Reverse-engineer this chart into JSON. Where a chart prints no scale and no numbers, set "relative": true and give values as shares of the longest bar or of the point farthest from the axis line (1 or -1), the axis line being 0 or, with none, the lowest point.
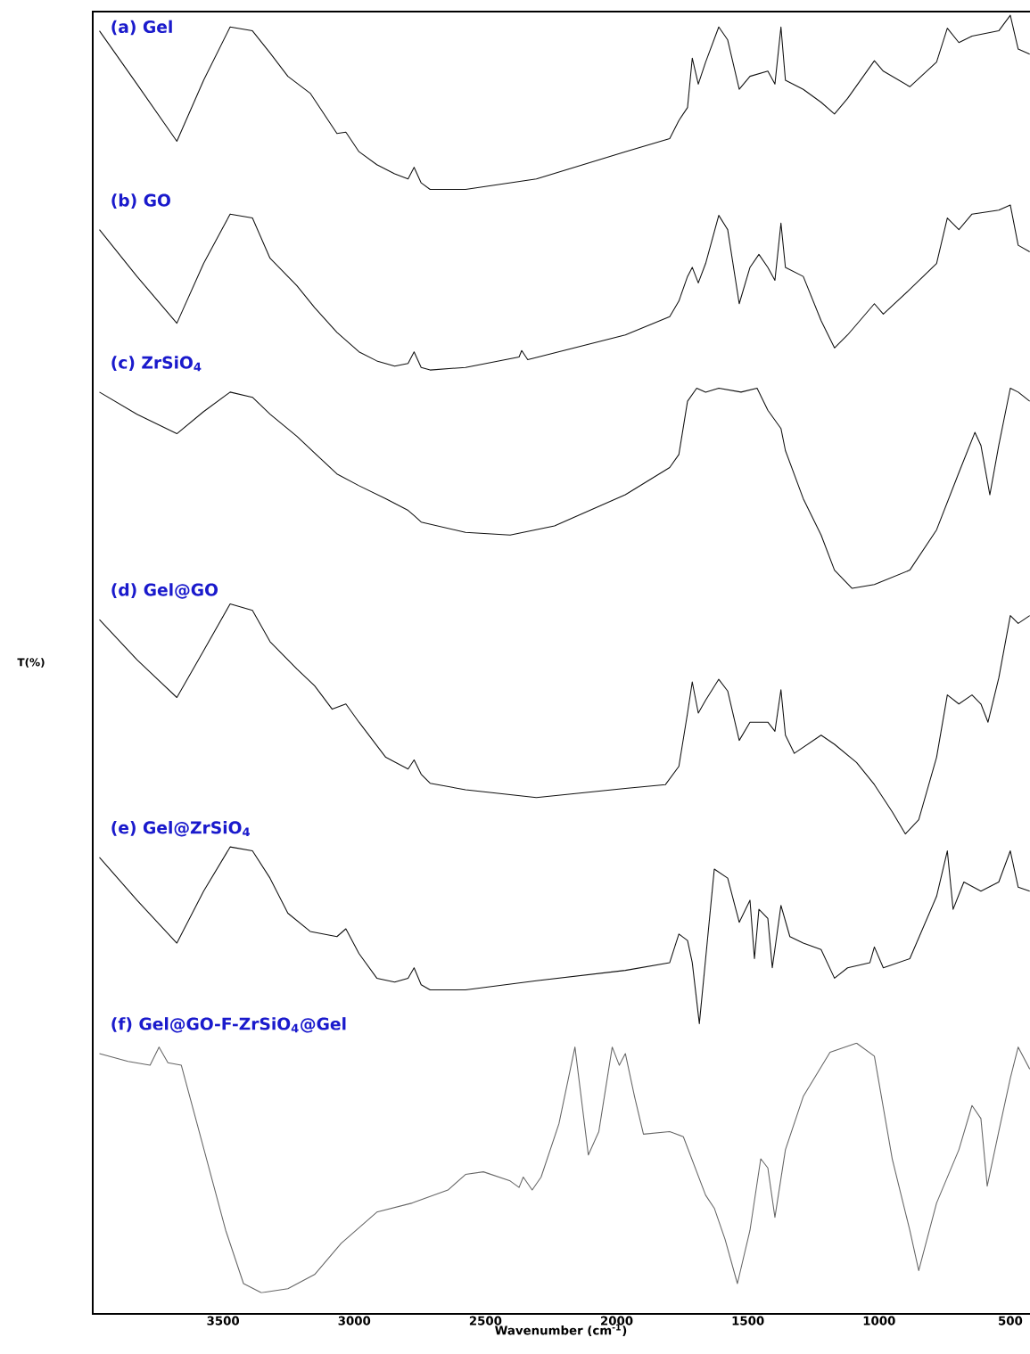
{
  "chart_data": {
    "type": "line",
    "relative": true,
    "xlabel": "Wavenumber (cm$^{-1}$)",
    "ylabel": "T(%)",
    "xlim": [
      4000,
      425
    ],
    "xticks": [
      3500,
      3000,
      2500,
      2000,
      1500,
      1000,
      500
    ],
    "series": [
      {
        "name": "(a) Gel",
        "color": "#111111",
        "x": [
          3971,
          3828,
          3676,
          3574,
          3473,
          3388,
          3321,
          3253,
          3168,
          3066,
          3032,
          2982,
          2914,
          2846,
          2795,
          2772,
          2745,
          2711,
          2576,
          2306,
          1967,
          1798,
          1763,
          1730,
          1712,
          1689,
          1661,
          1611,
          1577,
          1533,
          1492,
          1424,
          1397,
          1374,
          1357,
          1289,
          1221,
          1170,
          1120,
          1018,
          984,
          883,
          781,
          740,
          696,
          646,
          544,
          500,
          470,
          426
        ],
        "values": [
          0.988,
          0.947,
          0.903,
          0.95,
          0.991,
          0.988,
          0.971,
          0.953,
          0.94,
          0.909,
          0.91,
          0.895,
          0.885,
          0.878,
          0.874,
          0.883,
          0.871,
          0.866,
          0.866,
          0.874,
          0.895,
          0.905,
          0.919,
          0.929,
          0.967,
          0.947,
          0.964,
          0.991,
          0.981,
          0.943,
          0.953,
          0.957,
          0.947,
          0.991,
          0.95,
          0.943,
          0.933,
          0.924,
          0.936,
          0.965,
          0.957,
          0.945,
          0.964,
          0.99,
          0.979,
          0.984,
          0.988,
          1.0,
          0.974,
          0.97
        ]
      },
      {
        "name": "(b) GO",
        "color": "#111111",
        "x": [
          3971,
          3828,
          3676,
          3574,
          3473,
          3388,
          3321,
          3219,
          3151,
          3066,
          2982,
          2914,
          2846,
          2795,
          2772,
          2745,
          2711,
          2576,
          2372,
          2362,
          2339,
          1967,
          1798,
          1763,
          1730,
          1712,
          1689,
          1661,
          1611,
          1577,
          1533,
          1492,
          1458,
          1424,
          1397,
          1374,
          1357,
          1289,
          1221,
          1170,
          1120,
          1018,
          984,
          883,
          781,
          740,
          696,
          646,
          544,
          500,
          470,
          426
        ],
        "values": [
          0.835,
          0.799,
          0.763,
          0.809,
          0.847,
          0.844,
          0.813,
          0.792,
          0.775,
          0.756,
          0.741,
          0.734,
          0.73,
          0.732,
          0.741,
          0.729,
          0.727,
          0.729,
          0.737,
          0.742,
          0.735,
          0.754,
          0.768,
          0.78,
          0.799,
          0.806,
          0.794,
          0.809,
          0.846,
          0.835,
          0.778,
          0.806,
          0.816,
          0.806,
          0.796,
          0.84,
          0.806,
          0.799,
          0.765,
          0.744,
          0.754,
          0.778,
          0.77,
          0.789,
          0.809,
          0.844,
          0.835,
          0.847,
          0.85,
          0.854,
          0.823,
          0.818
        ]
      },
      {
        "name": "(c) ZrSiO$_{4}$",
        "color": "#111111",
        "x": [
          3971,
          3828,
          3676,
          3574,
          3473,
          3388,
          3321,
          3219,
          3066,
          2982,
          2880,
          2795,
          2772,
          2745,
          2576,
          2406,
          2237,
          1967,
          1798,
          1763,
          1730,
          1695,
          1661,
          1611,
          1526,
          1465,
          1424,
          1374,
          1357,
          1289,
          1221,
          1170,
          1103,
          1018,
          883,
          781,
          696,
          635,
          612,
          578,
          544,
          500,
          470,
          426
        ],
        "values": [
          0.71,
          0.693,
          0.678,
          0.695,
          0.71,
          0.706,
          0.693,
          0.676,
          0.647,
          0.638,
          0.628,
          0.619,
          0.615,
          0.61,
          0.602,
          0.6,
          0.607,
          0.631,
          0.652,
          0.662,
          0.703,
          0.713,
          0.71,
          0.713,
          0.71,
          0.713,
          0.696,
          0.682,
          0.665,
          0.628,
          0.6,
          0.573,
          0.559,
          0.562,
          0.573,
          0.604,
          0.648,
          0.679,
          0.669,
          0.631,
          0.669,
          0.713,
          0.71,
          0.703
        ]
      },
      {
        "name": "(d) Gel@GO",
        "color": "#111111",
        "x": [
          3971,
          3828,
          3676,
          3574,
          3473,
          3388,
          3321,
          3219,
          3151,
          3084,
          3032,
          2982,
          2880,
          2795,
          2772,
          2745,
          2711,
          2576,
          2306,
          1967,
          1814,
          1763,
          1730,
          1712,
          1689,
          1661,
          1611,
          1577,
          1533,
          1492,
          1424,
          1397,
          1374,
          1357,
          1323,
          1221,
          1170,
          1086,
          1018,
          950,
          900,
          849,
          781,
          740,
          696,
          646,
          612,
          585,
          544,
          500,
          470,
          426
        ],
        "values": [
          0.535,
          0.504,
          0.475,
          0.511,
          0.547,
          0.542,
          0.518,
          0.497,
          0.484,
          0.466,
          0.47,
          0.456,
          0.429,
          0.42,
          0.427,
          0.416,
          0.409,
          0.404,
          0.398,
          0.405,
          0.408,
          0.422,
          0.463,
          0.487,
          0.463,
          0.473,
          0.489,
          0.48,
          0.442,
          0.456,
          0.456,
          0.449,
          0.481,
          0.446,
          0.432,
          0.446,
          0.439,
          0.425,
          0.408,
          0.387,
          0.37,
          0.381,
          0.429,
          0.477,
          0.47,
          0.477,
          0.47,
          0.456,
          0.49,
          0.538,
          0.532,
          0.538
        ]
      },
      {
        "name": "(e) Gel@ZrSiO$_{4}$",
        "color": "#111111",
        "x": [
          3971,
          3828,
          3676,
          3574,
          3473,
          3388,
          3321,
          3253,
          3168,
          3066,
          3032,
          2982,
          2914,
          2846,
          2795,
          2772,
          2745,
          2711,
          2576,
          2306,
          1967,
          1798,
          1763,
          1730,
          1712,
          1685,
          1661,
          1628,
          1577,
          1533,
          1492,
          1475,
          1458,
          1424,
          1407,
          1374,
          1340,
          1289,
          1221,
          1170,
          1120,
          1035,
          1018,
          984,
          883,
          781,
          740,
          718,
          677,
          612,
          544,
          500,
          470,
          426
        ],
        "values": [
          0.352,
          0.319,
          0.286,
          0.326,
          0.36,
          0.357,
          0.336,
          0.309,
          0.295,
          0.291,
          0.297,
          0.278,
          0.259,
          0.256,
          0.259,
          0.267,
          0.254,
          0.25,
          0.25,
          0.257,
          0.265,
          0.271,
          0.293,
          0.288,
          0.271,
          0.224,
          0.274,
          0.343,
          0.336,
          0.302,
          0.319,
          0.274,
          0.312,
          0.305,
          0.267,
          0.315,
          0.291,
          0.286,
          0.281,
          0.259,
          0.267,
          0.271,
          0.283,
          0.267,
          0.274,
          0.322,
          0.357,
          0.312,
          0.333,
          0.326,
          0.333,
          0.357,
          0.329,
          0.326
        ]
      },
      {
        "name": "(f) Gel@GO-F-ZrSiO$_{4}$@Gel",
        "color": "#666666",
        "x": [
          3971,
          3862,
          3778,
          3744,
          3710,
          3659,
          3591,
          3490,
          3422,
          3354,
          3253,
          3151,
          3050,
          2914,
          2779,
          2643,
          2576,
          2508,
          2406,
          2372,
          2356,
          2322,
          2288,
          2220,
          2159,
          2108,
          2068,
          2017,
          1990,
          1967,
          1932,
          1898,
          1798,
          1746,
          1661,
          1628,
          1587,
          1540,
          1492,
          1451,
          1424,
          1397,
          1357,
          1289,
          1187,
          1086,
          1018,
          950,
          883,
          849,
          781,
          696,
          646,
          612,
          588,
          544,
          500,
          470,
          426
        ],
        "values": [
          0.201,
          0.195,
          0.192,
          0.206,
          0.194,
          0.192,
          0.141,
          0.065,
          0.024,
          0.017,
          0.02,
          0.031,
          0.055,
          0.079,
          0.086,
          0.096,
          0.108,
          0.11,
          0.103,
          0.098,
          0.106,
          0.096,
          0.106,
          0.147,
          0.206,
          0.123,
          0.141,
          0.206,
          0.192,
          0.201,
          0.168,
          0.139,
          0.141,
          0.137,
          0.092,
          0.082,
          0.058,
          0.024,
          0.065,
          0.12,
          0.113,
          0.075,
          0.127,
          0.168,
          0.202,
          0.209,
          0.199,
          0.12,
          0.065,
          0.034,
          0.086,
          0.127,
          0.161,
          0.151,
          0.099,
          0.141,
          0.182,
          0.206,
          0.189
        ]
      }
    ]
  }
}
